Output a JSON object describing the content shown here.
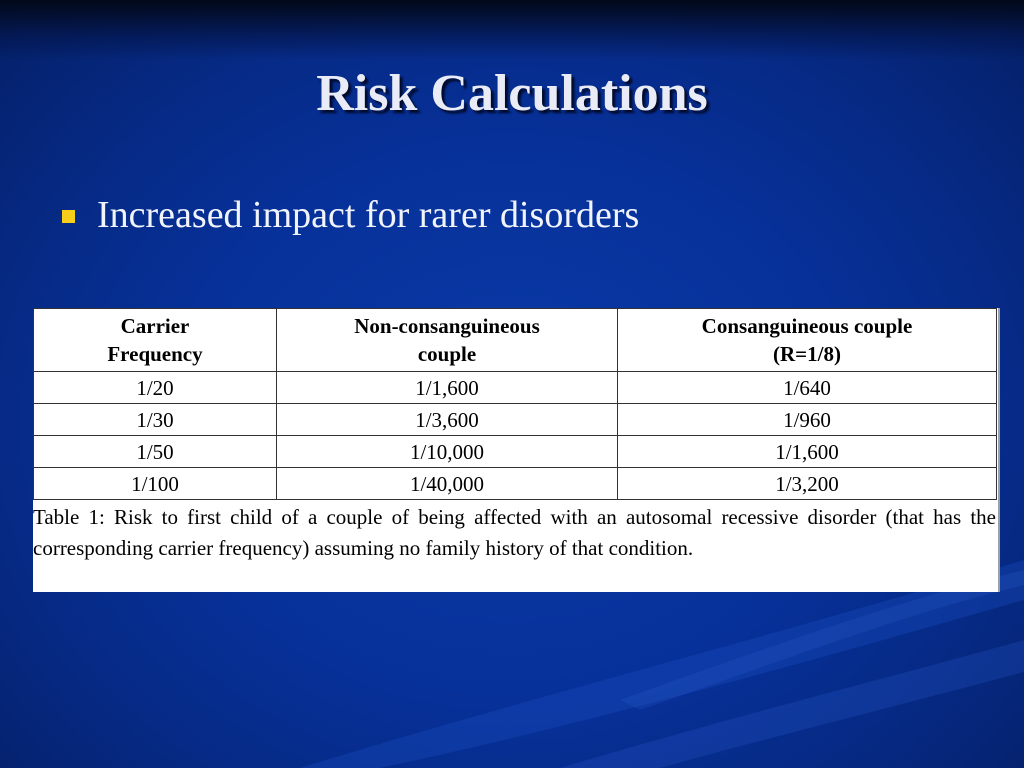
{
  "slide": {
    "title": "Risk Calculations",
    "bullet": "Increased impact for rarer disorders",
    "colors": {
      "background": "#07319a",
      "title": "#e9ecf7",
      "bullet_marker": "#f7cf1a"
    }
  },
  "table": {
    "headers": [
      {
        "line1": "Carrier",
        "line2": "Frequency"
      },
      {
        "line1": "Non-consanguineous",
        "line2": "couple"
      },
      {
        "line1": "Consanguineous couple",
        "line2": "(R=1/8)"
      }
    ],
    "rows": [
      [
        "1/20",
        "1/1,600",
        "1/640"
      ],
      [
        "1/30",
        "1/3,600",
        "1/960"
      ],
      [
        "1/50",
        "1/10,000",
        "1/1,600"
      ],
      [
        "1/100",
        "1/40,000",
        "1/3,200"
      ]
    ],
    "caption": "Table 1: Risk to first child of a couple of being affected with an autosomal recessive disorder (that has the corresponding carrier frequency) assuming no family history of that condition."
  }
}
